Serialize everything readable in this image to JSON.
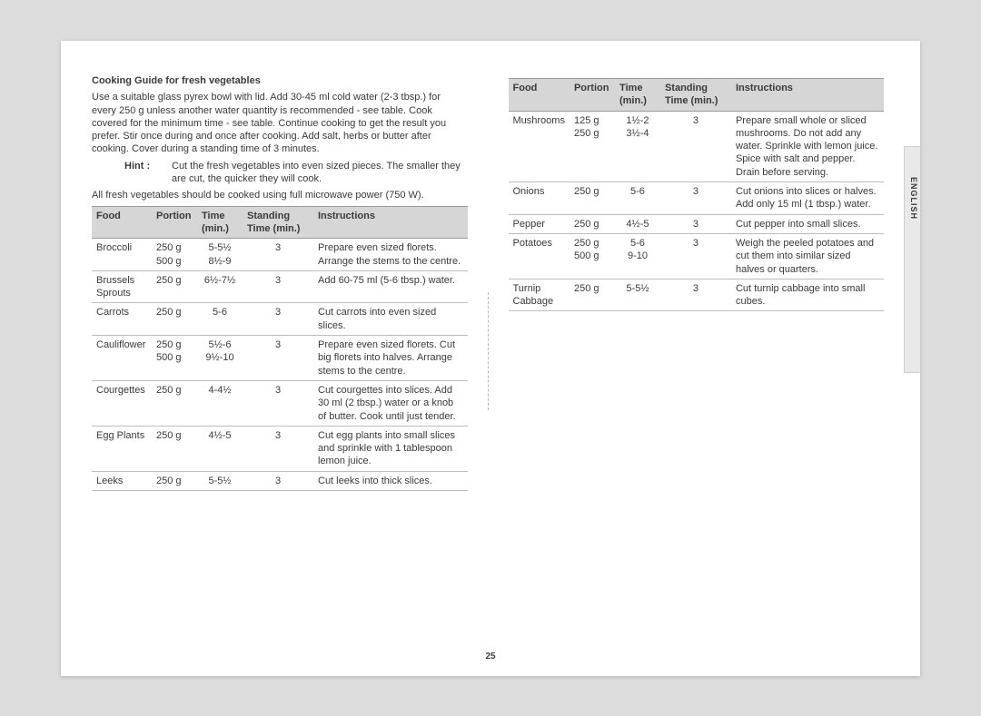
{
  "page_number": "25",
  "side_label": "ENGLISH",
  "colors": {
    "page_bg": "#ffffff",
    "outer_bg": "#dcdcdc",
    "header_bg": "#d6d6d6",
    "border": "#bdbdbd",
    "text": "#3a3a3a"
  },
  "section": {
    "title": "Cooking Guide for fresh vegetables",
    "intro": "Use a suitable glass pyrex bowl with lid. Add 30-45 ml cold water (2-3 tbsp.) for every 250 g unless another water quantity is recommended - see table. Cook covered for the minimum time - see table. Continue cooking to get the result you prefer. Stir once during and once after cooking. Add salt, herbs or butter after cooking. Cover during a standing time of 3 minutes.",
    "hint_label": "Hint :",
    "hint_text": "Cut the fresh vegetables into even sized pieces. The smaller they are cut, the quicker they will cook.",
    "note": "All fresh vegetables should be cooked using full microwave power (750 W)."
  },
  "table_headers": {
    "food": "Food",
    "portion": "Portion",
    "time": "Time (min.)",
    "standing": "Standing Time (min.)",
    "instructions": "Instructions"
  },
  "table_left": [
    {
      "food": "Broccoli",
      "portion": "250 g\n500 g",
      "time": "5-5½\n8½-9",
      "standing": "3",
      "instructions": "Prepare even sized florets. Arrange the stems to the centre."
    },
    {
      "food": "Brussels Sprouts",
      "portion": "250 g",
      "time": "6½-7½",
      "standing": "3",
      "instructions": "Add 60-75 ml (5-6 tbsp.) water."
    },
    {
      "food": "Carrots",
      "portion": "250 g",
      "time": "5-6",
      "standing": "3",
      "instructions": "Cut carrots into even sized slices."
    },
    {
      "food": "Cauliflower",
      "portion": "250 g\n500 g",
      "time": "5½-6\n9½-10",
      "standing": "3",
      "instructions": "Prepare even sized florets. Cut big florets into halves. Arrange stems to the centre."
    },
    {
      "food": "Courgettes",
      "portion": "250 g",
      "time": "4-4½",
      "standing": "3",
      "instructions": "Cut courgettes into slices. Add 30 ml (2 tbsp.) water or a knob of butter. Cook until just tender."
    },
    {
      "food": "Egg Plants",
      "portion": "250 g",
      "time": "4½-5",
      "standing": "3",
      "instructions": "Cut egg plants into small slices and sprinkle with 1 tablespoon lemon juice."
    },
    {
      "food": "Leeks",
      "portion": "250 g",
      "time": "5-5½",
      "standing": "3",
      "instructions": "Cut leeks into thick slices."
    }
  ],
  "table_right": [
    {
      "food": "Mushrooms",
      "portion": "125 g\n250 g",
      "time": "1½-2\n3½-4",
      "standing": "3",
      "instructions": "Prepare small whole or sliced mushrooms. Do not add any water. Sprinkle with lemon juice. Spice with salt and pepper. Drain before serving."
    },
    {
      "food": "Onions",
      "portion": "250 g",
      "time": "5-6",
      "standing": "3",
      "instructions": "Cut onions into slices or halves. Add only 15 ml (1 tbsp.) water."
    },
    {
      "food": "Pepper",
      "portion": "250 g",
      "time": "4½-5",
      "standing": "3",
      "instructions": "Cut pepper into small slices."
    },
    {
      "food": "Potatoes",
      "portion": "250 g\n500 g",
      "time": "5-6\n9-10",
      "standing": "3",
      "instructions": "Weigh the peeled potatoes and cut them into similar sized halves or quarters."
    },
    {
      "food": "Turnip Cabbage",
      "portion": "250 g",
      "time": "5-5½",
      "standing": "3",
      "instructions": "Cut turnip cabbage into small cubes."
    }
  ]
}
